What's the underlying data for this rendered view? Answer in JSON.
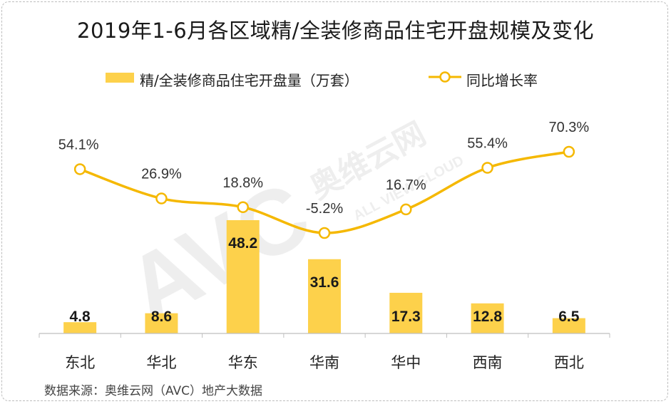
{
  "title": "2019年1-6月各区域精/全装修商品住宅开盘规模及变化",
  "legend": {
    "bar_label": "精/全装修商品住宅开盘量（万套）",
    "line_label": "同比增长率"
  },
  "source": "数据来源：奥维云网（AVC）地产大数据",
  "watermark": {
    "logo": "AVC",
    "brand": "奥维云网",
    "tagline": "ALL VIEW CLOUD"
  },
  "colors": {
    "bar": "#FDD14B",
    "line": "#F5B800",
    "marker_fill": "#ffffff",
    "axis": "#bfbfbf"
  },
  "chart_data": {
    "type": "bar",
    "categories": [
      "东北",
      "华北",
      "华东",
      "华南",
      "华中",
      "西南",
      "西北"
    ],
    "series": [
      {
        "name": "精/全装修商品住宅开盘量（万套）",
        "type": "bar",
        "values": [
          4.8,
          8.6,
          48.2,
          31.6,
          17.3,
          12.8,
          6.5
        ],
        "labels": [
          "4.8",
          "8.6",
          "48.2",
          "31.6",
          "17.3",
          "12.8",
          "6.5"
        ]
      },
      {
        "name": "同比增长率",
        "type": "line",
        "values": [
          54.1,
          26.9,
          18.8,
          -5.2,
          16.7,
          55.4,
          70.3
        ],
        "labels": [
          "54.1%",
          "26.9%",
          "18.8%",
          "-5.2%",
          "16.7%",
          "55.4%",
          "70.3%"
        ]
      }
    ],
    "bar_axis_range": [
      0,
      48.2
    ],
    "line_axis_range": [
      -5.2,
      70.3
    ],
    "legend_position": "top",
    "grid": false
  }
}
